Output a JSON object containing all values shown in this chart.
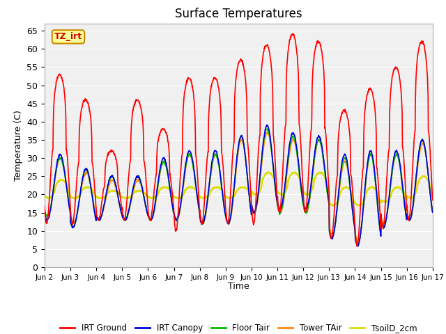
{
  "title": "Surface Temperatures",
  "ylabel": "Temperature (C)",
  "xlabel": "Time",
  "xlim_start": 0,
  "xlim_end": 15,
  "ylim": [
    0,
    67
  ],
  "yticks": [
    0,
    5,
    10,
    15,
    20,
    25,
    30,
    35,
    40,
    45,
    50,
    55,
    60,
    65
  ],
  "xtick_labels": [
    "Jun 2",
    "Jun 3",
    "Jun 4",
    "Jun 5",
    "Jun 6",
    "Jun 7",
    "Jun 8",
    "Jun 9",
    "Jun 10",
    "Jun 11",
    "Jun 12",
    "Jun 13",
    "Jun 14",
    "Jun 15",
    "Jun 16",
    "Jun 17"
  ],
  "fig_bg_color": "#ffffff",
  "plot_bg_color": "#f0f0f0",
  "annotation_text": "TZ_irt",
  "annotation_box_color": "#ffff99",
  "annotation_text_color": "#cc0000",
  "annotation_border_color": "#cc8800",
  "grid_color": "#e0e0e0",
  "series": {
    "IRT Ground": {
      "color": "#ff0000",
      "lw": 1.2
    },
    "IRT Canopy": {
      "color": "#0000dd",
      "lw": 1.2
    },
    "Floor Tair": {
      "color": "#00bb00",
      "lw": 1.2
    },
    "Tower TAir": {
      "color": "#ff8800",
      "lw": 1.2
    },
    "TsoilD_2cm": {
      "color": "#dddd00",
      "lw": 1.8
    }
  },
  "irt_ground_peaks": [
    53,
    46,
    32,
    46,
    38,
    52,
    52,
    57,
    61,
    64,
    62,
    43,
    49,
    55,
    62
  ],
  "irt_ground_mins": [
    12,
    12,
    13,
    13,
    13,
    10,
    12,
    12,
    12,
    15,
    15,
    8,
    6,
    11,
    13
  ],
  "canopy_peaks": [
    31,
    27,
    25,
    25,
    30,
    32,
    32,
    36,
    39,
    37,
    36,
    31,
    32,
    32,
    35
  ],
  "canopy_mins": [
    13,
    11,
    13,
    13,
    13,
    13,
    12,
    12,
    15,
    16,
    16,
    8,
    6,
    11,
    13
  ],
  "floor_peaks": [
    30,
    27,
    25,
    25,
    29,
    31,
    31,
    36,
    38,
    36,
    35,
    30,
    31,
    31,
    35
  ],
  "floor_mins": [
    14,
    11,
    13,
    13,
    13,
    13,
    12,
    12,
    15,
    15,
    15,
    8,
    6,
    11,
    13
  ],
  "tower_peaks": [
    30,
    26,
    24,
    24,
    29,
    31,
    31,
    35,
    37,
    35,
    35,
    29,
    31,
    31,
    34
  ],
  "tower_mins": [
    14,
    12,
    13,
    13,
    13,
    13,
    12,
    12,
    15,
    15,
    15,
    9,
    7,
    12,
    13
  ],
  "tsoil_peaks": [
    24,
    22,
    21,
    21,
    22,
    22,
    22,
    22,
    26,
    26,
    26,
    22,
    22,
    22,
    25
  ],
  "tsoil_mins": [
    19,
    19,
    19,
    19,
    19,
    19,
    19,
    19,
    20,
    20,
    20,
    17,
    17,
    18,
    19
  ]
}
